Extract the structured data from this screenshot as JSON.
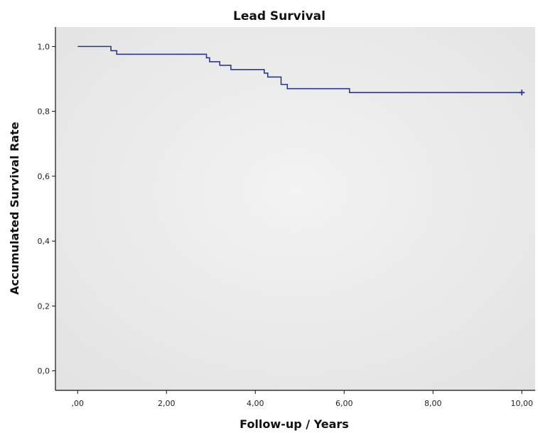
{
  "chart_data": {
    "type": "line",
    "title": "Lead Survival",
    "xlabel": "Follow-up / Years",
    "ylabel": "Accumulated Survival Rate",
    "xlim": [
      -0.5,
      10.3
    ],
    "ylim": [
      -0.06,
      1.06
    ],
    "x_ticks": [
      0,
      2,
      4,
      6,
      8,
      10
    ],
    "x_tick_labels": [
      ",00",
      "2,00",
      "4,00",
      "6,00",
      "8,00",
      "10,00"
    ],
    "y_ticks": [
      0,
      0.2,
      0.4,
      0.6,
      0.8,
      1.0
    ],
    "y_tick_labels": [
      "0,0",
      "0,2",
      "0,4",
      "0,6",
      "0,8",
      "1,0"
    ],
    "grid": false,
    "series": [
      {
        "step": true,
        "color": "#2b3a8c",
        "x": [
          0,
          0.75,
          0.88,
          2.9,
          2.97,
          3.2,
          3.45,
          4.2,
          4.28,
          4.58,
          4.72,
          6.12,
          10.0
        ],
        "y": [
          1.0,
          0.987,
          0.976,
          0.965,
          0.953,
          0.942,
          0.929,
          0.918,
          0.906,
          0.883,
          0.87,
          0.858,
          0.858
        ]
      }
    ],
    "censored": [
      {
        "x": 10.0,
        "y": 0.858
      }
    ]
  },
  "colors": {
    "plot_background": "#efefef",
    "axis": "#111111",
    "line": "#2b3a8c"
  }
}
